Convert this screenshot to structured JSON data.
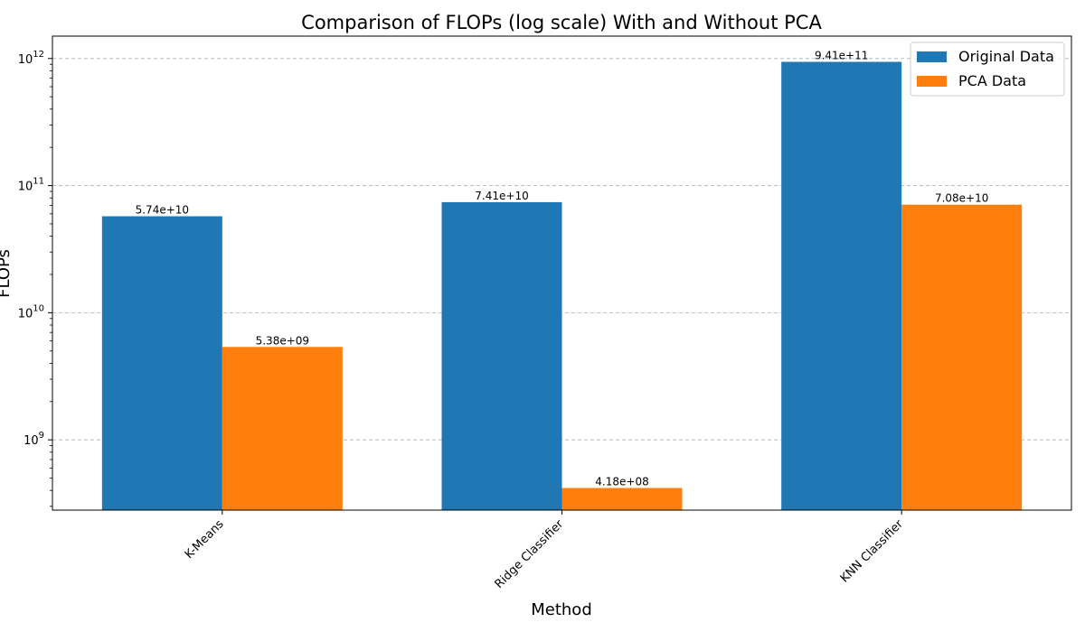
{
  "chart_data": {
    "type": "bar",
    "title": "Comparison of FLOPs (log scale) With and Without PCA",
    "xlabel": "Method",
    "ylabel": "FLOPs",
    "yscale": "log",
    "ylim": [
      280000000.0,
      1500000000000.0
    ],
    "categories": [
      "K-Means",
      "Ridge Classifier",
      "KNN Classifier"
    ],
    "series": [
      {
        "name": "Original Data",
        "color": "#1f77b4",
        "values": [
          57400000000.0,
          74100000000.0,
          941000000000.0
        ],
        "labels": [
          "5.74e+10",
          "7.41e+10",
          "9.41e+11"
        ]
      },
      {
        "name": "PCA Data",
        "color": "#ff7f0e",
        "values": [
          5380000000.0,
          418000000.0,
          70800000000.0
        ],
        "labels": [
          "5.38e+09",
          "4.18e+08",
          "7.08e+10"
        ]
      }
    ],
    "y_ticks": [
      {
        "value": 1000000000.0,
        "base": "10",
        "exp": "9"
      },
      {
        "value": 10000000000.0,
        "base": "10",
        "exp": "10"
      },
      {
        "value": 100000000000.0,
        "base": "10",
        "exp": "11"
      },
      {
        "value": 1000000000000.0,
        "base": "10",
        "exp": "12"
      }
    ],
    "grid": "y-dashed",
    "legend_position": "top-right"
  }
}
